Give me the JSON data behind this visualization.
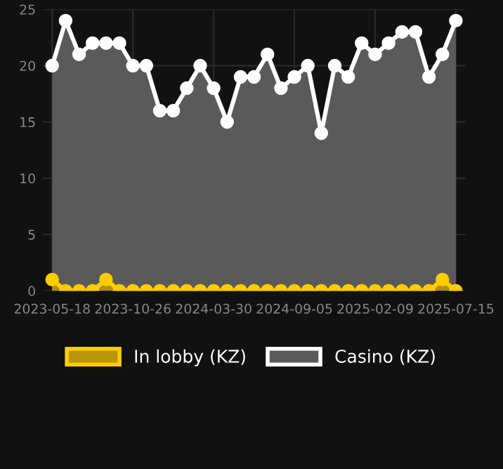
{
  "chart_data": {
    "type": "area",
    "categories": [
      "2023-05-18",
      null,
      null,
      null,
      null,
      null,
      "2023-10-26",
      null,
      null,
      null,
      null,
      null,
      "2024-03-30",
      null,
      null,
      null,
      null,
      null,
      "2024-09-05",
      null,
      null,
      null,
      null,
      null,
      "2025-02-09",
      null,
      null,
      null,
      null,
      null,
      "2025-07-15"
    ],
    "series": [
      {
        "name": "In lobby (KZ)",
        "color": "#ffcc00",
        "values": [
          1,
          0,
          0,
          0,
          1,
          0,
          0,
          0,
          0,
          0,
          0,
          0,
          0,
          0,
          0,
          0,
          0,
          0,
          0,
          0,
          0,
          0,
          0,
          0,
          0,
          0,
          0,
          0,
          0,
          1,
          0
        ]
      },
      {
        "name": "Casino (KZ)",
        "color": "#ffffff",
        "values": [
          20,
          24,
          21,
          22,
          22,
          22,
          20,
          20,
          16,
          16,
          18,
          20,
          18,
          15,
          19,
          19,
          21,
          18,
          19,
          20,
          14,
          20,
          19,
          22,
          21,
          22,
          23,
          23,
          19,
          21,
          24
        ]
      }
    ],
    "ylim": [
      0,
      25
    ],
    "yticks": [
      0,
      5,
      10,
      15,
      20,
      25
    ],
    "grid": true,
    "legend": "bottom",
    "marker": "circle",
    "line_style": "solid"
  }
}
